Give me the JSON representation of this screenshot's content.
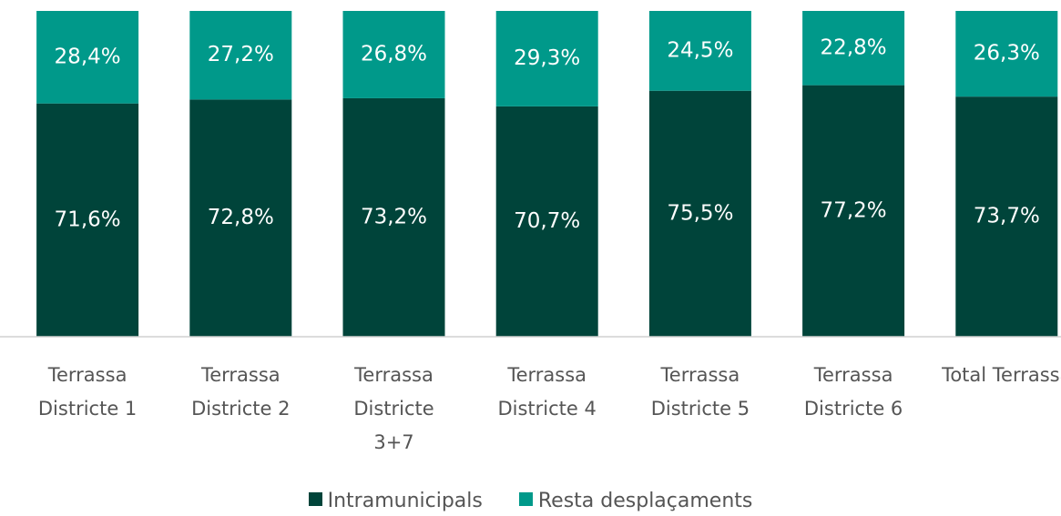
{
  "chart_data": {
    "type": "bar",
    "stacked": true,
    "categories": [
      "Terrassa Districte 1",
      "Terrassa Districte 2",
      "Terrassa Districte 3+7",
      "Terrassa Districte 4",
      "Terrassa Districte 5",
      "Terrassa Districte 6",
      "Total Terrassa"
    ],
    "series": [
      {
        "name": "Intramunicipals",
        "color": "#00443a",
        "values": [
          71.6,
          72.8,
          73.2,
          70.7,
          75.5,
          77.2,
          73.7
        ],
        "value_labels": [
          "71,6%",
          "72,8%",
          "73,2%",
          "70,7%",
          "75,5%",
          "77,2%",
          "73,7%"
        ]
      },
      {
        "name": "Resta desplaçaments",
        "color": "#00998a",
        "values": [
          28.4,
          27.2,
          26.8,
          29.3,
          24.5,
          22.8,
          26.3
        ],
        "value_labels": [
          "28,4%",
          "27,2%",
          "26,8%",
          "29,3%",
          "24,5%",
          "22,8%",
          "26,3%"
        ]
      }
    ],
    "ylim": [
      0,
      100
    ],
    "legend": "bottom"
  }
}
